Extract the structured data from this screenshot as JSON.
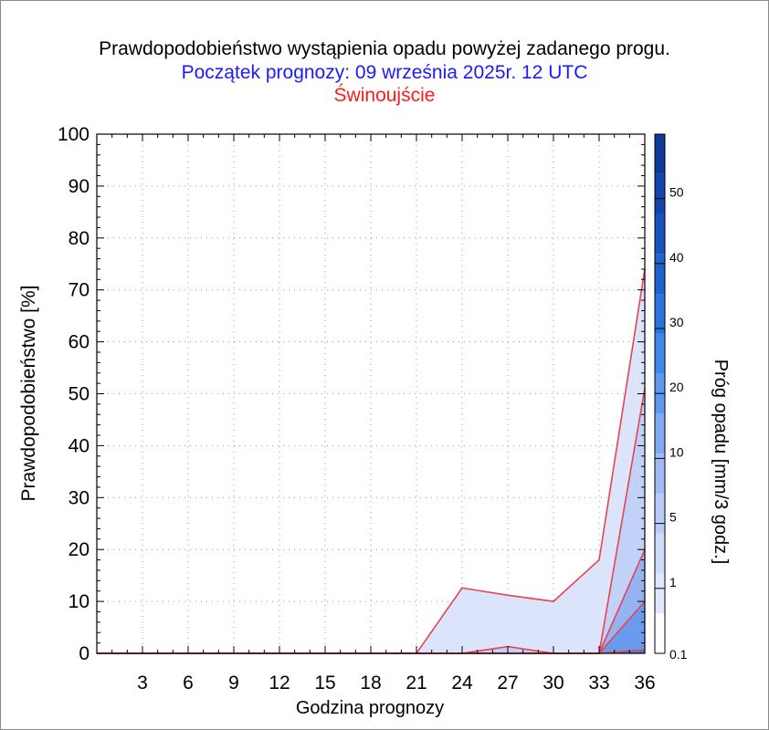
{
  "title": "Prawdopodobieństwo wystąpienia opadu powyżej zadanego progu.",
  "subtitle": "Początek prognozy: 09 września 2025r. 12 UTC",
  "location": "Świnoujście",
  "colors": {
    "title": "#000000",
    "subtitle": "#1a1aff",
    "location": "#ff1a1a",
    "series_line": "#e8434f"
  },
  "chart_data": {
    "type": "area",
    "xlabel": "Godzina prognozy",
    "ylabel": "Prawdopodobieństwo [%]",
    "xlim": [
      0,
      36
    ],
    "ylim": [
      0,
      100
    ],
    "x_ticks": [
      "3",
      "6",
      "9",
      "12",
      "15",
      "18",
      "21",
      "24",
      "27",
      "30",
      "33",
      "36"
    ],
    "y_ticks": [
      "0",
      "10",
      "20",
      "30",
      "40",
      "50",
      "60",
      "70",
      "80",
      "90",
      "100"
    ],
    "grid": true,
    "x": [
      0,
      3,
      6,
      9,
      12,
      15,
      18,
      21,
      24,
      27,
      30,
      33,
      36
    ],
    "series": [
      {
        "threshold": 0.1,
        "color": "#dce4fb",
        "values": [
          0,
          0,
          0,
          0,
          0,
          0,
          0,
          0,
          12.6,
          11.2,
          10,
          18,
          74
        ]
      },
      {
        "threshold": 1,
        "color": "#c2d1f7",
        "values": [
          0,
          0,
          0,
          0,
          0,
          0,
          0,
          0,
          0,
          1.3,
          0,
          0,
          51
        ]
      },
      {
        "threshold": 5,
        "color": "#95b3f1",
        "values": [
          0,
          0,
          0,
          0,
          0,
          0,
          0,
          0,
          0,
          0,
          0,
          0,
          20
        ]
      },
      {
        "threshold": 10,
        "color": "#6b9bee",
        "values": [
          0,
          0,
          0,
          0,
          0,
          0,
          0,
          0,
          0,
          0,
          0,
          0,
          10
        ]
      },
      {
        "threshold": 20,
        "color": "#3f7ee3",
        "values": [
          0,
          0,
          0,
          0,
          0,
          0,
          0,
          0,
          0,
          0,
          0,
          0,
          0.7
        ]
      }
    ],
    "colorbar": {
      "label": "Próg opadu [mm/3 godz.]",
      "tick_labels": [
        "0.1",
        "1",
        "5",
        "10",
        "20",
        "30",
        "40",
        "50"
      ],
      "bands": [
        "#ffffff",
        "#e1e8fb",
        "#cfdcf9",
        "#b9ccf7",
        "#a0bbf4",
        "#7faaf2",
        "#5d98ee",
        "#3d87ea",
        "#2a73e0",
        "#1f62cf",
        "#1852bf",
        "#1345ad",
        "#0f3a9b"
      ]
    }
  }
}
